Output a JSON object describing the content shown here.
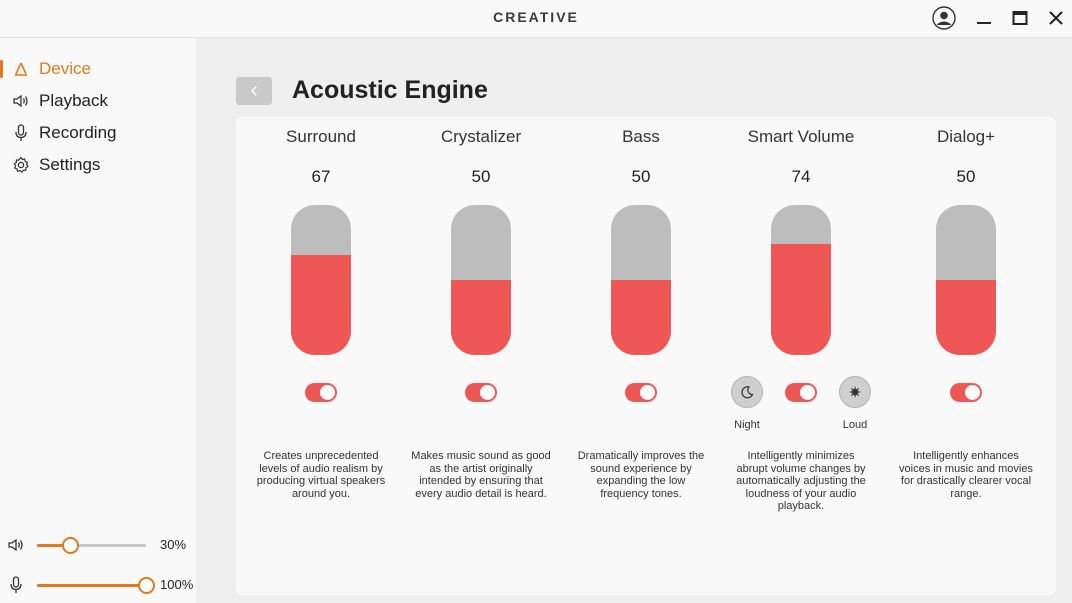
{
  "app": {
    "brand": "CREATIVE"
  },
  "sidebar": {
    "items": [
      {
        "label": "Device",
        "icon": "device-icon",
        "active": true
      },
      {
        "label": "Playback",
        "icon": "speaker-icon",
        "active": false
      },
      {
        "label": "Recording",
        "icon": "microphone-icon",
        "active": false
      },
      {
        "label": "Settings",
        "icon": "gear-icon",
        "active": false
      }
    ],
    "speaker_volume": {
      "value": 30,
      "label": "30%"
    },
    "mic_volume": {
      "value": 100,
      "label": "100%"
    }
  },
  "main": {
    "title": "Acoustic Engine",
    "effects": [
      {
        "name": "Surround",
        "value": "67",
        "level": 67,
        "enabled": true,
        "description": "Creates unprecedented levels of audio realism by producing virtual speakers around you."
      },
      {
        "name": "Crystalizer",
        "value": "50",
        "level": 50,
        "enabled": true,
        "description": "Makes music sound as good as the artist originally intended by ensuring that every audio detail is heard."
      },
      {
        "name": "Bass",
        "value": "50",
        "level": 50,
        "enabled": true,
        "description": "Dramatically improves the sound experience by expanding the low frequency tones."
      },
      {
        "name": "Smart Volume",
        "value": "74",
        "level": 74,
        "enabled": true,
        "description": "Intelligently minimizes abrupt volume changes by automatically adjusting the loudness of your audio playback.",
        "modes": {
          "night": "Night",
          "loud": "Loud"
        }
      },
      {
        "name": "Dialog+",
        "value": "50",
        "level": 50,
        "enabled": true,
        "description": "Intelligently enhances voices in music and movies for drastically clearer vocal range."
      }
    ]
  },
  "colors": {
    "accent": "#e07a1c",
    "bar_fill": "#ef5656",
    "bar_track": "#bdbdbd"
  }
}
